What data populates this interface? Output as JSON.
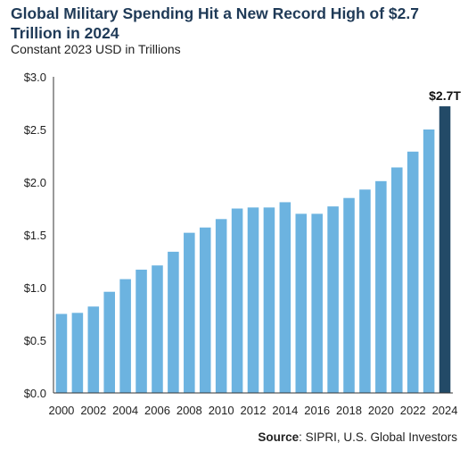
{
  "header": {
    "title": "Global Military Spending Hit a New Record High of $2.7 Trillion in 2024",
    "subtitle": "Constant 2023 USD in Trillions"
  },
  "footer": {
    "source_label": "Source",
    "source_text": ": SIPRI, U.S. Global Investors"
  },
  "colors": {
    "bar": "#6cb3e0",
    "highlight": "#234a67",
    "axis": "#333333"
  },
  "chart_data": {
    "type": "bar",
    "title": "Global Military Spending Hit a New Record High of $2.7 Trillion in 2024",
    "subtitle": "Constant 2023 USD in Trillions",
    "xlabel": "",
    "ylabel": "",
    "ylim": [
      0,
      3.0
    ],
    "y_ticks": [
      "$0.0",
      "$0.5",
      "$1.0",
      "$1.5",
      "$2.0",
      "$2.5",
      "$3.0"
    ],
    "y_tick_values": [
      0,
      0.5,
      1.0,
      1.5,
      2.0,
      2.5,
      3.0
    ],
    "categories": [
      "2000",
      "2001",
      "2002",
      "2003",
      "2004",
      "2005",
      "2006",
      "2007",
      "2008",
      "2009",
      "2010",
      "2011",
      "2012",
      "2013",
      "2014",
      "2015",
      "2016",
      "2017",
      "2018",
      "2019",
      "2020",
      "2021",
      "2022",
      "2023",
      "2024"
    ],
    "x_tick_labels": [
      "2000",
      "2002",
      "2004",
      "2006",
      "2008",
      "2010",
      "2012",
      "2014",
      "2016",
      "2018",
      "2020",
      "2022",
      "2024"
    ],
    "values": [
      0.75,
      0.76,
      0.82,
      0.96,
      1.08,
      1.17,
      1.21,
      1.34,
      1.52,
      1.57,
      1.65,
      1.75,
      1.76,
      1.76,
      1.81,
      1.7,
      1.7,
      1.77,
      1.85,
      1.93,
      2.01,
      2.14,
      2.29,
      2.5,
      2.72
    ],
    "highlight_category": "2024",
    "data_labels": [
      {
        "category": "2024",
        "text": "$2.7T"
      }
    ],
    "grid": false
  }
}
